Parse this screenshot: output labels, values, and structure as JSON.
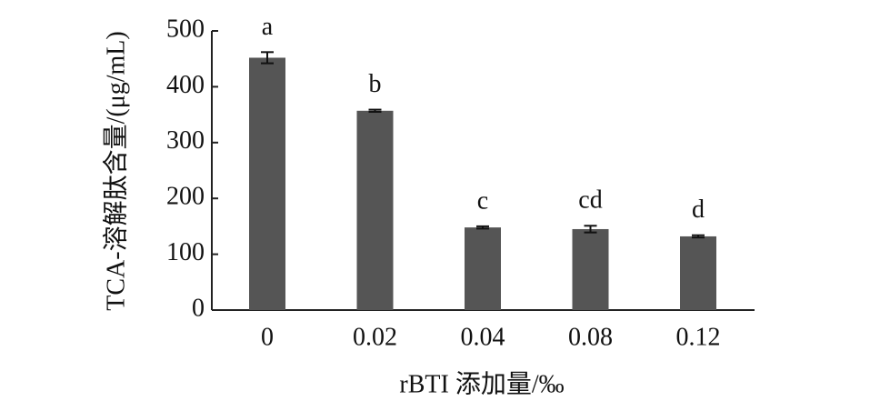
{
  "chart_data": {
    "type": "bar",
    "x_label": "rBTI 添加量/‰",
    "y_label": "TCA-溶解肽含量/(μg/mL)",
    "categories": [
      "0",
      "0.02",
      "0.04",
      "0.08",
      "0.12"
    ],
    "values": [
      452,
      357,
      148,
      145,
      132
    ],
    "errors": [
      10,
      2,
      2,
      6,
      2
    ],
    "annotations": [
      "a",
      "b",
      "c",
      "cd",
      "d"
    ],
    "color": "#555555",
    "ylim": [
      0,
      500
    ],
    "yticks": [
      0,
      100,
      200,
      300,
      400,
      500
    ]
  }
}
